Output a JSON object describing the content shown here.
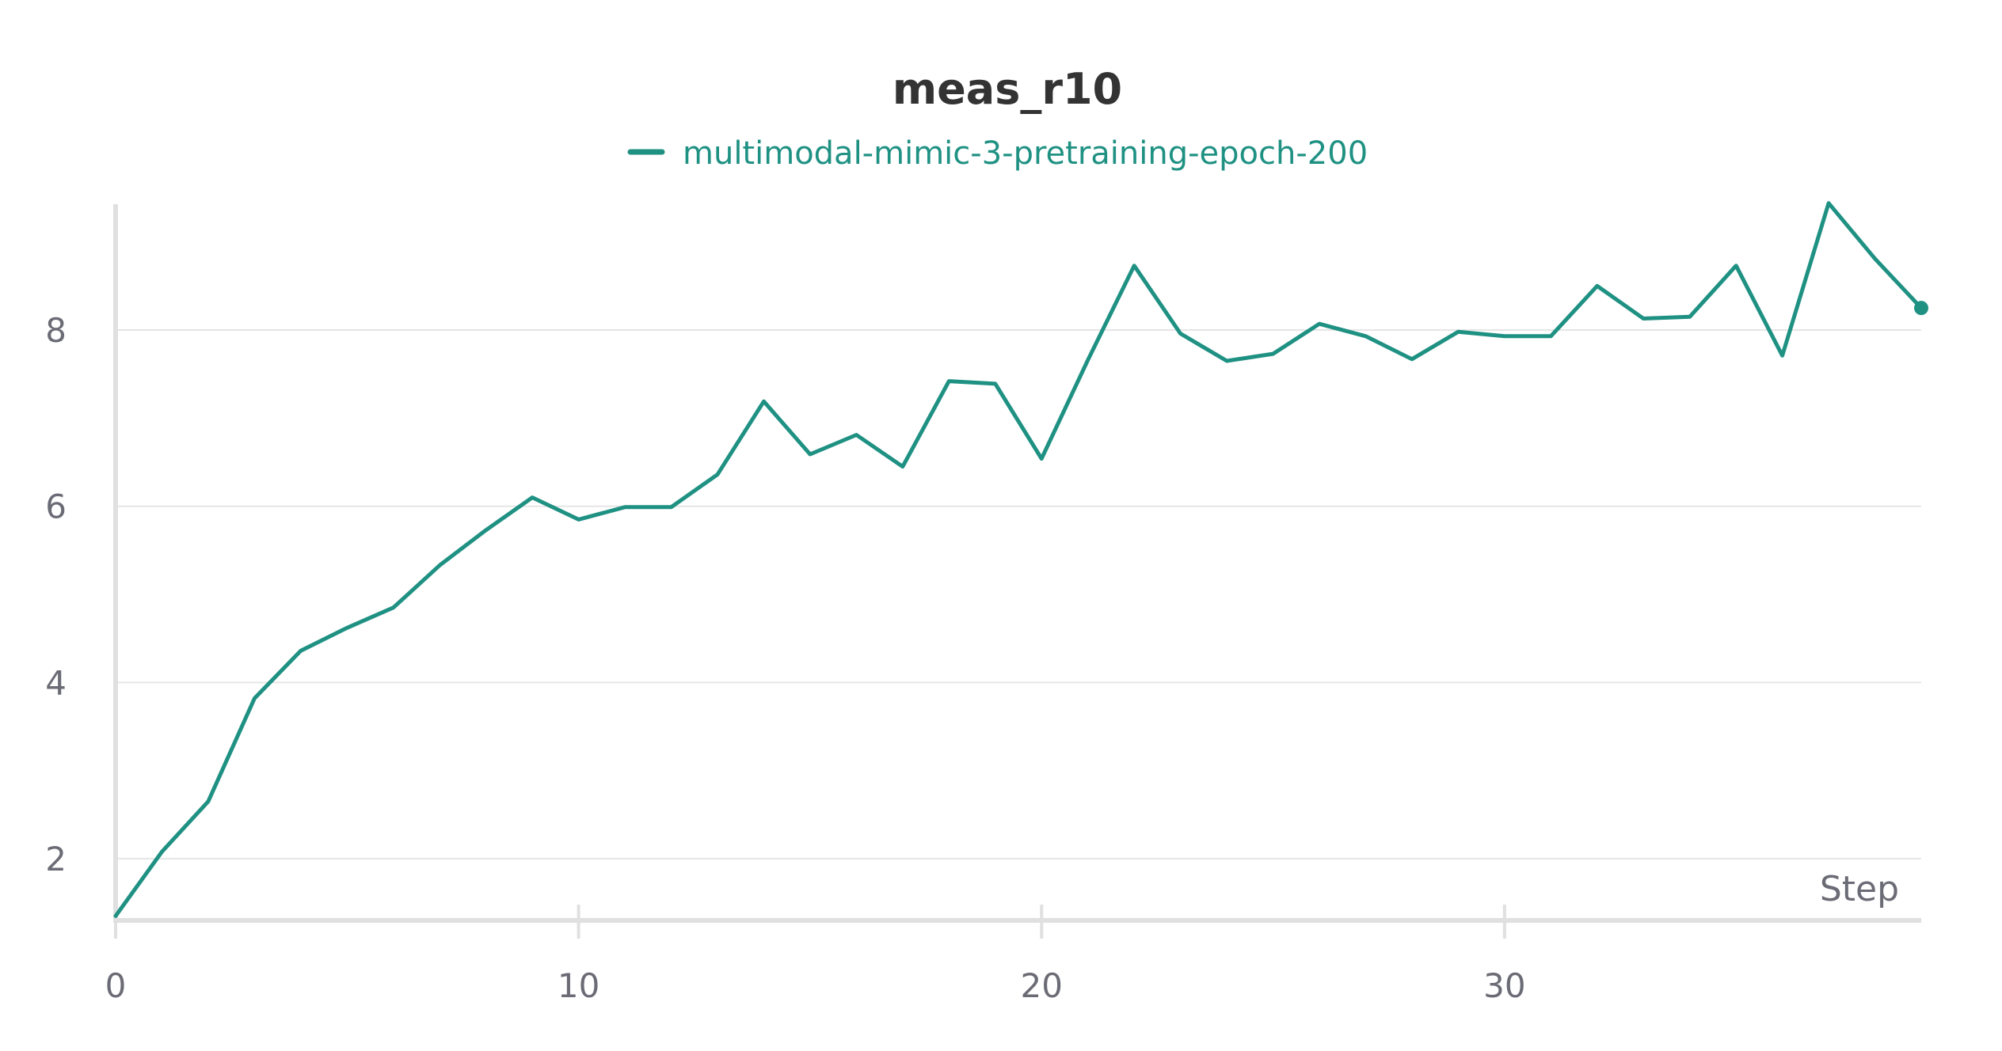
{
  "colors": {
    "series": "#1f9183",
    "grid": "#e6e6e6",
    "axis": "#e0e0e0",
    "tick_text": "#6b6b76",
    "title_text": "#333333"
  },
  "chart_data": {
    "type": "line",
    "title": "meas_r10",
    "xlabel": "Step",
    "ylabel": "",
    "xlim": [
      0,
      39
    ],
    "ylim": [
      1.3,
      9.5
    ],
    "x_ticks": [
      0,
      10,
      20,
      30
    ],
    "y_ticks": [
      2,
      4,
      6,
      8
    ],
    "x_tick_labels": [
      "0",
      "10",
      "20",
      "30"
    ],
    "y_tick_labels": [
      "2",
      "4",
      "6",
      "8"
    ],
    "grid": "horizontal",
    "legend_position": "top-center",
    "end_marker": true,
    "series": [
      {
        "name": "multimodal-mimic-3-pretraining-epoch-200",
        "color": "#1f9183",
        "x": [
          0,
          1,
          2,
          3,
          4,
          5,
          6,
          7,
          8,
          9,
          10,
          11,
          12,
          13,
          14,
          15,
          16,
          17,
          18,
          19,
          20,
          21,
          22,
          23,
          24,
          25,
          26,
          27,
          28,
          29,
          30,
          31,
          32,
          33,
          34,
          35,
          36,
          37,
          38,
          39
        ],
        "values": [
          1.35,
          2.08,
          2.65,
          3.82,
          4.36,
          4.62,
          4.85,
          5.33,
          5.73,
          6.1,
          5.85,
          5.99,
          5.99,
          6.36,
          7.19,
          6.59,
          6.81,
          6.45,
          7.42,
          7.39,
          6.54,
          7.66,
          8.73,
          7.96,
          7.65,
          7.73,
          8.07,
          7.93,
          7.67,
          7.98,
          7.93,
          7.93,
          8.5,
          8.13,
          8.15,
          8.73,
          7.71,
          9.44,
          8.81,
          8.25
        ]
      }
    ]
  }
}
